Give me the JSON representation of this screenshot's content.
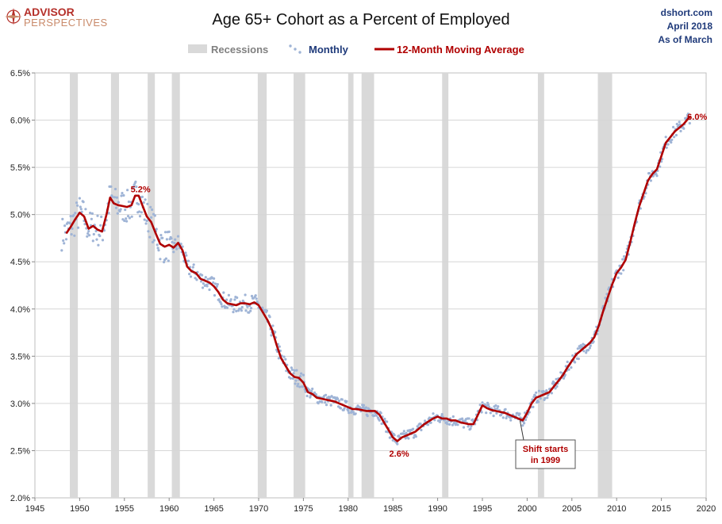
{
  "logo": {
    "line1": "ADVISOR",
    "line2": "PERSPECTIVES",
    "icon": "compass-star-icon"
  },
  "source": {
    "site": "dshort.com",
    "date": "April 2018",
    "asof": "As of March"
  },
  "colors": {
    "recession": "#d9d9d9",
    "monthly": "#9fb4d6",
    "average": "#b00000",
    "legend_recession_text": "#808080",
    "legend_monthly_text": "#1f3a7a",
    "legend_avg_text": "#b00000"
  },
  "chart_data": {
    "type": "line",
    "title": "Age 65+ Cohort as a Percent of Employed",
    "xlim": [
      1945,
      2020
    ],
    "ylim": [
      2.0,
      6.5
    ],
    "x_ticks": [
      1945,
      1950,
      1955,
      1960,
      1965,
      1970,
      1975,
      1980,
      1985,
      1990,
      1995,
      2000,
      2005,
      2010,
      2015,
      2020
    ],
    "y_ticks": [
      "2.0%",
      "2.5%",
      "3.0%",
      "3.5%",
      "4.0%",
      "4.5%",
      "5.0%",
      "5.5%",
      "6.0%",
      "6.5%"
    ],
    "y_tick_values": [
      2.0,
      2.5,
      3.0,
      3.5,
      4.0,
      4.5,
      5.0,
      5.5,
      6.0,
      6.5
    ],
    "grid": "horizontal",
    "legend": {
      "placement": "top",
      "recessions": "Recessions",
      "monthly": "Monthly",
      "average": "12-Month Moving Average"
    },
    "recessions": [
      [
        1948.9,
        1949.8
      ],
      [
        1953.5,
        1954.4
      ],
      [
        1957.6,
        1958.4
      ],
      [
        1960.3,
        1961.2
      ],
      [
        1969.9,
        1970.9
      ],
      [
        1973.9,
        1975.2
      ],
      [
        1980.0,
        1980.6
      ],
      [
        1981.5,
        1982.9
      ],
      [
        1990.5,
        1991.2
      ],
      [
        2001.2,
        2001.9
      ],
      [
        2007.9,
        2009.5
      ]
    ],
    "series": [
      {
        "name": "12-Month Moving Average",
        "x": [
          1948.5,
          1949.0,
          1949.5,
          1950.0,
          1950.5,
          1951.0,
          1951.5,
          1952.0,
          1952.5,
          1953.0,
          1953.4,
          1953.8,
          1954.3,
          1954.8,
          1955.3,
          1955.8,
          1956.2,
          1956.6,
          1957.0,
          1957.5,
          1958.0,
          1958.5,
          1959.0,
          1959.5,
          1960.0,
          1960.5,
          1961.0,
          1961.5,
          1962.0,
          1962.5,
          1963.0,
          1963.5,
          1964.0,
          1964.5,
          1965.0,
          1965.5,
          1966.0,
          1966.5,
          1967.0,
          1967.5,
          1968.0,
          1968.5,
          1969.0,
          1969.5,
          1970.0,
          1970.5,
          1971.0,
          1971.5,
          1972.0,
          1972.5,
          1973.0,
          1973.5,
          1974.0,
          1974.5,
          1975.0,
          1975.5,
          1976.0,
          1976.5,
          1977.0,
          1977.5,
          1978.0,
          1978.5,
          1979.0,
          1979.5,
          1980.0,
          1980.5,
          1981.0,
          1981.5,
          1982.0,
          1982.5,
          1983.0,
          1983.5,
          1984.0,
          1984.5,
          1985.0,
          1985.5,
          1986.0,
          1986.5,
          1987.0,
          1987.5,
          1988.0,
          1988.5,
          1989.0,
          1989.5,
          1990.0,
          1990.5,
          1991.0,
          1991.5,
          1992.0,
          1992.5,
          1993.0,
          1993.5,
          1994.0,
          1994.5,
          1995.0,
          1995.5,
          1996.0,
          1996.5,
          1997.0,
          1997.5,
          1998.0,
          1998.5,
          1999.0,
          1999.5,
          2000.0,
          2000.5,
          2001.0,
          2001.5,
          2002.0,
          2002.5,
          2003.0,
          2003.5,
          2004.0,
          2004.5,
          2005.0,
          2005.5,
          2006.0,
          2006.5,
          2007.0,
          2007.5,
          2008.0,
          2008.5,
          2009.0,
          2009.5,
          2010.0,
          2010.5,
          2011.0,
          2011.5,
          2012.0,
          2012.5,
          2013.0,
          2013.5,
          2014.0,
          2014.5,
          2015.0,
          2015.5,
          2016.0,
          2016.5,
          2017.0,
          2017.5,
          2018.2
        ],
        "values": [
          4.8,
          4.87,
          4.95,
          5.02,
          4.98,
          4.85,
          4.88,
          4.84,
          4.82,
          5.0,
          5.18,
          5.12,
          5.1,
          5.09,
          5.08,
          5.1,
          5.2,
          5.2,
          5.1,
          4.98,
          4.92,
          4.8,
          4.69,
          4.66,
          4.68,
          4.65,
          4.7,
          4.62,
          4.45,
          4.4,
          4.38,
          4.32,
          4.3,
          4.28,
          4.24,
          4.18,
          4.1,
          4.06,
          4.05,
          4.04,
          4.06,
          4.06,
          4.05,
          4.07,
          4.04,
          3.96,
          3.88,
          3.78,
          3.62,
          3.48,
          3.4,
          3.32,
          3.28,
          3.27,
          3.22,
          3.12,
          3.1,
          3.06,
          3.05,
          3.04,
          3.03,
          3.02,
          3.0,
          2.98,
          2.96,
          2.94,
          2.94,
          2.93,
          2.92,
          2.92,
          2.92,
          2.88,
          2.8,
          2.72,
          2.64,
          2.6,
          2.64,
          2.66,
          2.68,
          2.7,
          2.74,
          2.78,
          2.81,
          2.84,
          2.86,
          2.84,
          2.84,
          2.82,
          2.82,
          2.8,
          2.79,
          2.78,
          2.78,
          2.88,
          2.98,
          2.95,
          2.93,
          2.92,
          2.91,
          2.9,
          2.88,
          2.86,
          2.84,
          2.82,
          2.9,
          3.0,
          3.06,
          3.08,
          3.1,
          3.12,
          3.18,
          3.24,
          3.3,
          3.38,
          3.45,
          3.52,
          3.56,
          3.6,
          3.64,
          3.7,
          3.82,
          3.98,
          4.12,
          4.26,
          4.38,
          4.44,
          4.52,
          4.7,
          4.9,
          5.08,
          5.22,
          5.36,
          5.43,
          5.48,
          5.62,
          5.76,
          5.82,
          5.88,
          5.92,
          5.96,
          6.04
        ]
      },
      {
        "name": "Monthly",
        "x": [],
        "values": []
      }
    ],
    "annotations": [
      {
        "text": "5.2%",
        "x": 1956.8,
        "y": 5.27
      },
      {
        "text": "2.6%",
        "x": 1985.7,
        "y": 2.47
      },
      {
        "text": "6.0%",
        "x": 2019.0,
        "y": 6.04
      },
      {
        "text": "Shift starts",
        "text2": "in 1999",
        "x": 1999.2,
        "y": 2.82
      }
    ]
  }
}
